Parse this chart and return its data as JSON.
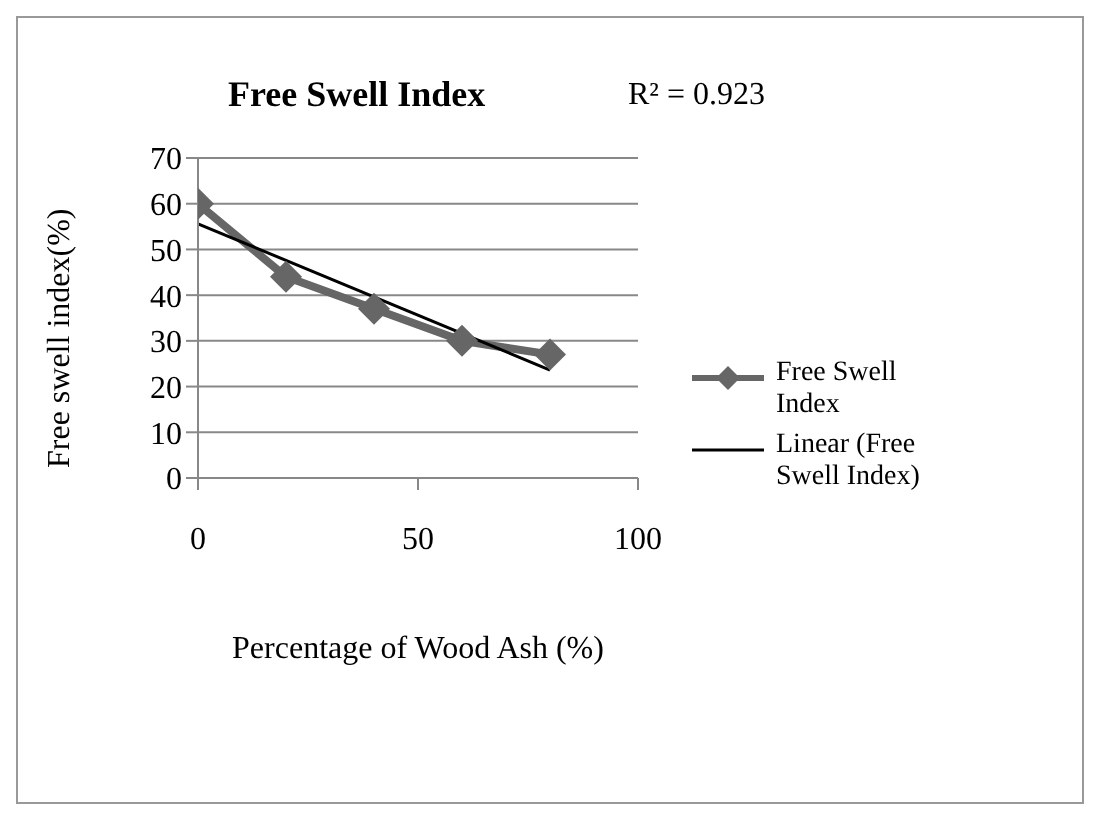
{
  "chart_data": {
    "type": "line",
    "title": "Free Swell Index",
    "xlabel": "Percentage of Wood Ash (%)",
    "ylabel": "Free swell index(%)",
    "annotations": [
      "R² = 0.923"
    ],
    "x": [
      0,
      20,
      40,
      60,
      80
    ],
    "series": [
      {
        "name": "Free Swell Index",
        "color": "#666666",
        "values": [
          60,
          44,
          37,
          30,
          27
        ],
        "marker": "diamond"
      },
      {
        "name": "Linear (Free Swell Index)",
        "type": "line",
        "color": "#000000",
        "x": [
          0,
          80
        ],
        "values": [
          55.6,
          23.6
        ],
        "marker": "none"
      }
    ],
    "xlim": [
      0,
      100
    ],
    "xticks": [
      0,
      50,
      100
    ],
    "ylim": [
      0,
      70
    ],
    "yticks": [
      0,
      10,
      20,
      30,
      40,
      50,
      60,
      70
    ],
    "grid": "y",
    "legend": "right"
  }
}
